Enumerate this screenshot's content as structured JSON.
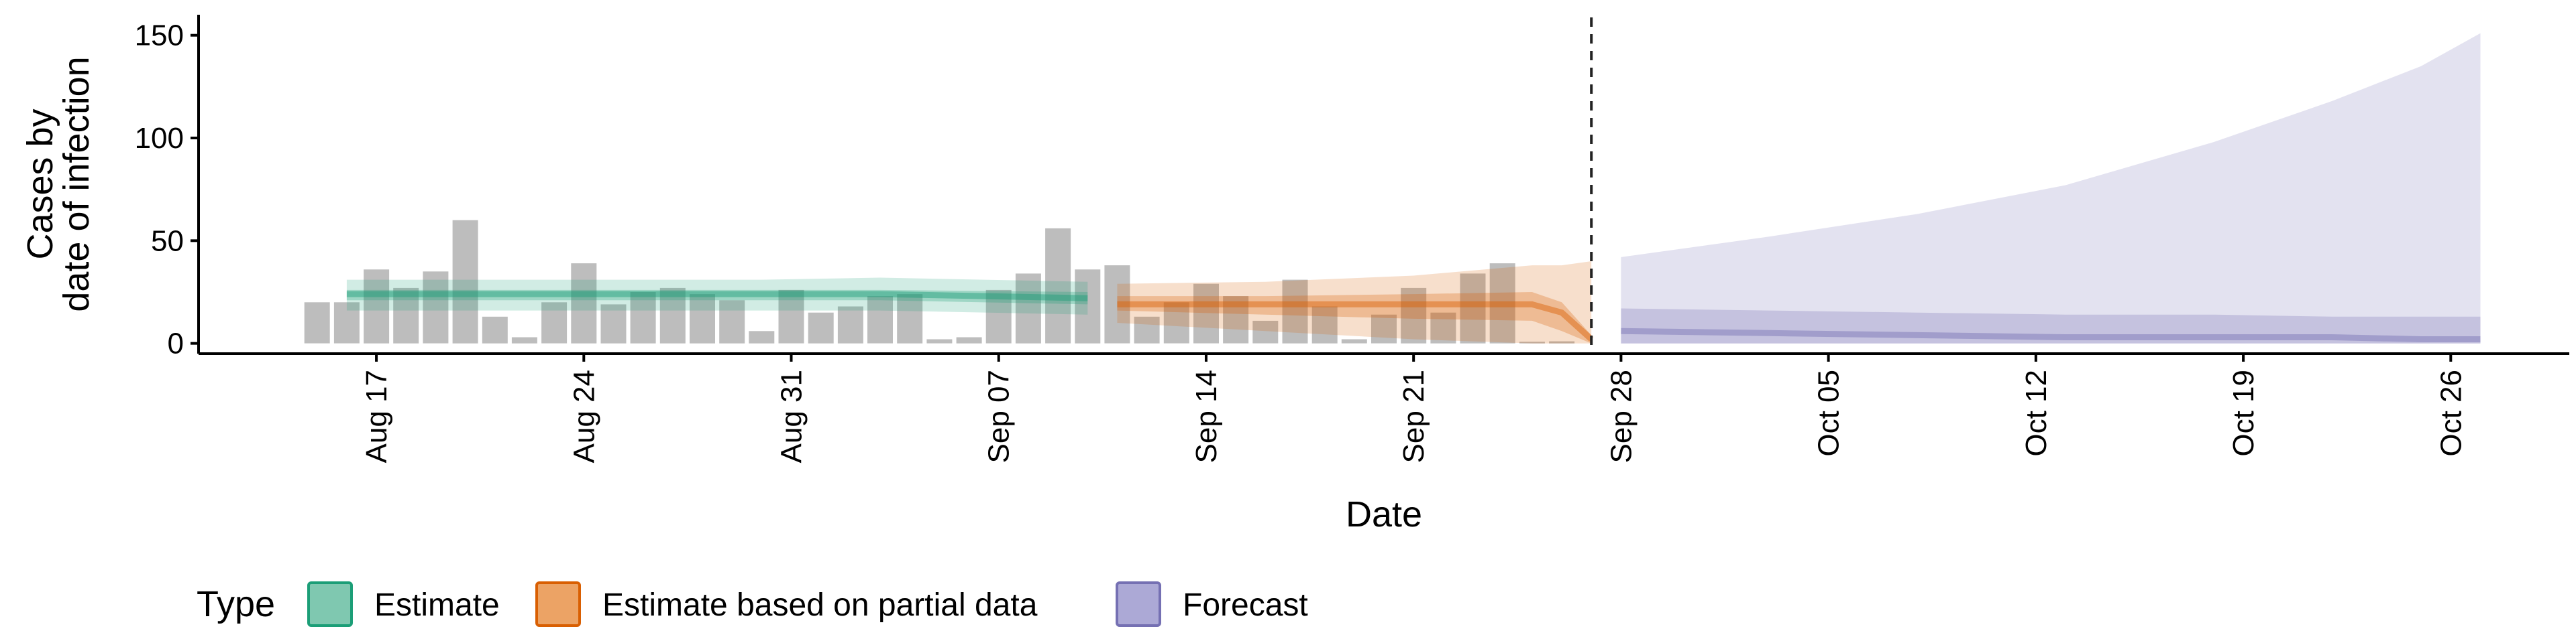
{
  "chart_data": {
    "type": "area",
    "xlabel": "Date",
    "ylabel_lines": [
      "Cases by",
      "date of infection"
    ],
    "ylim": [
      -5,
      160
    ],
    "yticks": [
      0,
      50,
      100,
      150
    ],
    "xlim": [
      "2020-08-11",
      "2020-10-30"
    ],
    "xticks": [
      {
        "date": "2020-08-17",
        "label": "Aug 17"
      },
      {
        "date": "2020-08-24",
        "label": "Aug 24"
      },
      {
        "date": "2020-08-31",
        "label": "Aug 31"
      },
      {
        "date": "2020-09-07",
        "label": "Sep 07"
      },
      {
        "date": "2020-09-14",
        "label": "Sep 14"
      },
      {
        "date": "2020-09-21",
        "label": "Sep 21"
      },
      {
        "date": "2020-09-28",
        "label": "Sep 28"
      },
      {
        "date": "2020-10-05",
        "label": "Oct 05"
      },
      {
        "date": "2020-10-12",
        "label": "Oct 12"
      },
      {
        "date": "2020-10-19",
        "label": "Oct 19"
      },
      {
        "date": "2020-10-26",
        "label": "Oct 26"
      }
    ],
    "forecast_cutoff": "2020-09-27",
    "observed_cases": {
      "start_date": "2020-08-15",
      "values": [
        20,
        20,
        36,
        27,
        35,
        60,
        13,
        3,
        20,
        39,
        19,
        25,
        27,
        24,
        21,
        6,
        26,
        15,
        18,
        23,
        24,
        2,
        3,
        26,
        34,
        56,
        36,
        38,
        13,
        20,
        29,
        23,
        11,
        31,
        18,
        2,
        14,
        27,
        15,
        34,
        39,
        0,
        1
      ]
    },
    "series": [
      {
        "name": "Estimate",
        "color": "#1b9e77",
        "points": [
          {
            "date": "2020-08-16",
            "lower90": 16,
            "lower50": 21,
            "median": 24,
            "upper50": 26,
            "upper90": 31
          },
          {
            "date": "2020-08-23",
            "lower90": 16,
            "lower50": 21,
            "median": 24,
            "upper50": 26,
            "upper90": 31
          },
          {
            "date": "2020-08-30",
            "lower90": 16,
            "lower50": 21,
            "median": 24,
            "upper50": 26,
            "upper90": 31
          },
          {
            "date": "2020-09-03",
            "lower90": 16,
            "lower50": 21,
            "median": 24,
            "upper50": 26,
            "upper90": 32
          },
          {
            "date": "2020-09-10",
            "lower90": 14,
            "lower50": 19,
            "median": 22,
            "upper50": 25,
            "upper90": 30
          }
        ]
      },
      {
        "name": "Estimate based on partial data",
        "color": "#d95f02",
        "points": [
          {
            "date": "2020-09-11",
            "lower90": 10,
            "lower50": 16,
            "median": 19,
            "upper50": 23,
            "upper90": 29
          },
          {
            "date": "2020-09-16",
            "lower90": 6,
            "lower50": 14,
            "median": 19,
            "upper50": 23,
            "upper90": 30
          },
          {
            "date": "2020-09-21",
            "lower90": 2,
            "lower50": 12,
            "median": 19,
            "upper50": 24,
            "upper90": 33
          },
          {
            "date": "2020-09-25",
            "lower90": 0,
            "lower50": 11,
            "median": 19,
            "upper50": 25,
            "upper90": 38
          },
          {
            "date": "2020-09-26",
            "lower90": 0,
            "lower50": 6,
            "median": 15,
            "upper50": 20,
            "upper90": 38
          },
          {
            "date": "2020-09-27",
            "lower90": 0,
            "lower50": 0,
            "median": 2,
            "upper50": 4,
            "upper90": 40
          }
        ]
      },
      {
        "name": "Forecast",
        "color": "#7570b3",
        "points": [
          {
            "date": "2020-09-28",
            "lower90": 0,
            "lower50": 0,
            "median": 6,
            "upper50": 17,
            "upper90": 42
          },
          {
            "date": "2020-10-03",
            "lower90": 0,
            "lower50": 0,
            "median": 5,
            "upper50": 16,
            "upper90": 52
          },
          {
            "date": "2020-10-08",
            "lower90": 0,
            "lower50": 0,
            "median": 4,
            "upper50": 15,
            "upper90": 63
          },
          {
            "date": "2020-10-13",
            "lower90": 0,
            "lower50": 0,
            "median": 3,
            "upper50": 14,
            "upper90": 77
          },
          {
            "date": "2020-10-18",
            "lower90": 0,
            "lower50": 0,
            "median": 3,
            "upper50": 14,
            "upper90": 98
          },
          {
            "date": "2020-10-22",
            "lower90": 0,
            "lower50": 0,
            "median": 3,
            "upper50": 13,
            "upper90": 118
          },
          {
            "date": "2020-10-25",
            "lower90": 0,
            "lower50": 0,
            "median": 2,
            "upper50": 13,
            "upper90": 135
          },
          {
            "date": "2020-10-27",
            "lower90": 0,
            "lower50": 0,
            "median": 2,
            "upper50": 13,
            "upper90": 151
          }
        ]
      }
    ],
    "legend": {
      "title": "Type",
      "position": "bottom-left",
      "items": [
        {
          "label": "Estimate",
          "fill": "#7fc8b0",
          "stroke": "#1b9e77"
        },
        {
          "label": "Estimate based on partial data",
          "fill": "#eca365",
          "stroke": "#d95f02"
        },
        {
          "label": "Forecast",
          "fill": "#aca9d6",
          "stroke": "#7570b3"
        }
      ]
    },
    "grid": false
  }
}
